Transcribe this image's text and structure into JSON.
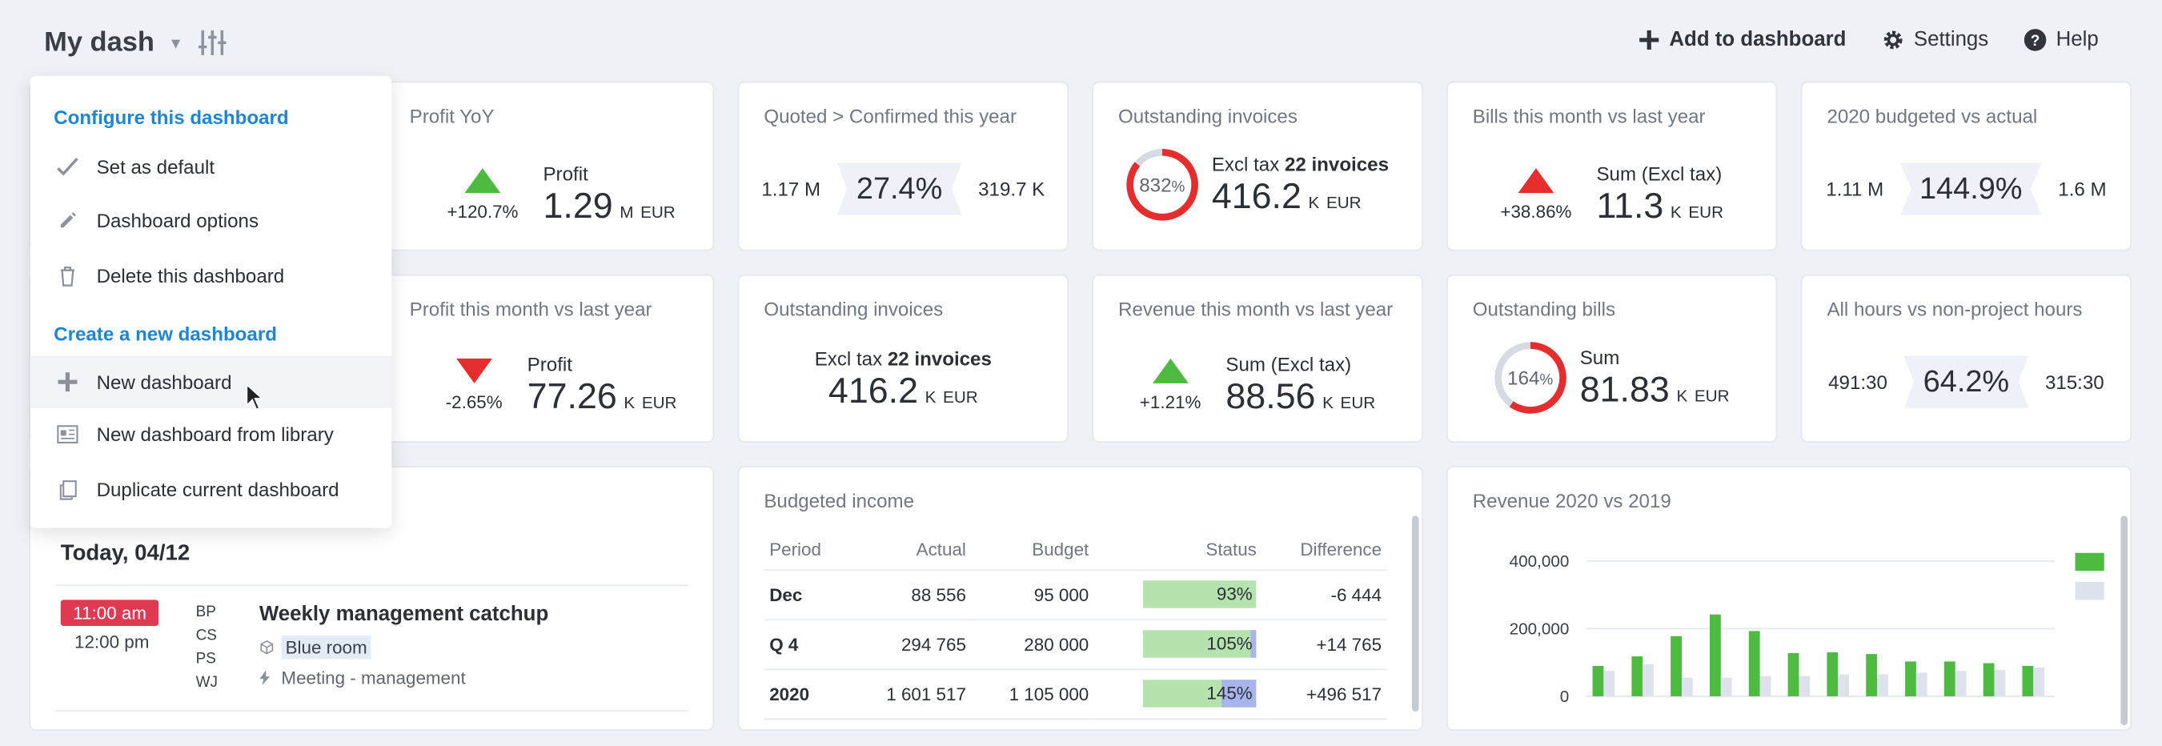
{
  "header": {
    "title": "My dash",
    "add_label": "Add to dashboard",
    "settings_label": "Settings",
    "help_label": "Help"
  },
  "menu": {
    "configure_heading": "Configure this dashboard",
    "set_default": "Set as default",
    "dashboard_options": "Dashboard options",
    "delete_dashboard": "Delete this dashboard",
    "create_heading": "Create a new dashboard",
    "new_dashboard": "New dashboard",
    "new_from_library": "New dashboard from library",
    "duplicate_dashboard": "Duplicate current dashboard"
  },
  "cards": {
    "profit_yoy": {
      "title": "Profit YoY",
      "change": "+120.7%",
      "label": "Profit",
      "value": "1.29",
      "unit": "M",
      "currency": "EUR"
    },
    "quoted": {
      "title": "Quoted > Confirmed this year",
      "left": "1.17 M",
      "pct": "27.4%",
      "right": "319.7 K"
    },
    "out_inv_1": {
      "title": "Outstanding invoices",
      "donut_num": "832",
      "donut_pct": "%",
      "label_pre": "Excl tax",
      "label_bold": "22 invoices",
      "value": "416.2",
      "unit": "K",
      "currency": "EUR"
    },
    "bills": {
      "title": "Bills this month vs last year",
      "change": "+38.86%",
      "label": "Sum (Excl tax)",
      "value": "11.3",
      "unit": "K",
      "currency": "EUR"
    },
    "budgeted": {
      "title": "2020 budgeted vs actual",
      "left": "1.11 M",
      "pct": "144.9%",
      "right": "1.6 M"
    },
    "profit_month": {
      "title": "Profit this month vs last year",
      "change": "-2.65%",
      "label": "Profit",
      "value": "77.26",
      "unit": "K",
      "currency": "EUR"
    },
    "out_inv_2": {
      "title": "Outstanding invoices",
      "label_pre": "Excl tax",
      "label_bold": "22 invoices",
      "value": "416.2",
      "unit": "K",
      "currency": "EUR"
    },
    "revenue_month": {
      "title": "Revenue this month vs last year",
      "change": "+1.21%",
      "label": "Sum (Excl tax)",
      "value": "88.56",
      "unit": "K",
      "currency": "EUR"
    },
    "out_bills": {
      "title": "Outstanding bills",
      "donut_num": "164",
      "donut_pct": "%",
      "label": "Sum",
      "value": "81.83",
      "unit": "K",
      "currency": "EUR"
    },
    "hours": {
      "title": "All hours vs non-project hours",
      "left": "491:30",
      "pct": "64.2%",
      "right": "315:30"
    }
  },
  "calendar": {
    "day": "Today, 04/12",
    "start": "11:00 am",
    "end": "12:00 pm",
    "initials": [
      "BP",
      "CS",
      "PS",
      "WJ"
    ],
    "event_title": "Weekly management catchup",
    "room": "Blue room",
    "type": "Meeting - management"
  },
  "budget_table": {
    "title": "Budgeted income",
    "headers": [
      "Period",
      "Actual",
      "Budget",
      "Status",
      "Difference"
    ],
    "rows": [
      {
        "period": "Dec",
        "actual": "88 556",
        "budget": "95 000",
        "status": "93%",
        "status_value": 93,
        "diff": "-6 444",
        "diff_sign": "neg"
      },
      {
        "period": "Q 4",
        "actual": "294 765",
        "budget": "280 000",
        "status": "105%",
        "status_value": 105,
        "diff": "+14 765",
        "diff_sign": "pos"
      },
      {
        "period": "2020",
        "actual": "1 601 517",
        "budget": "1 105 000",
        "status": "145%",
        "status_value": 145,
        "diff": "+496 517",
        "diff_sign": "pos"
      }
    ]
  },
  "chart_data": {
    "type": "bar",
    "title": "Revenue 2020 vs 2019",
    "ylim": [
      0,
      420000
    ],
    "yticks": [
      0,
      200000,
      400000
    ],
    "ytick_labels": [
      "0",
      "200,000",
      "400,000"
    ],
    "grid": true,
    "legend_position": "right",
    "colors": {
      "s2020": "#4cbb3f",
      "s2019": "#dde2ec"
    },
    "series": [
      {
        "values": [
          90000,
          118000,
          178000,
          242000,
          193000,
          128000,
          130000,
          125000,
          103000,
          103000,
          98000,
          90000
        ]
      },
      {
        "values": [
          75000,
          95000,
          55000,
          55000,
          60000,
          60000,
          65000,
          65000,
          70000,
          75000,
          78000,
          85000
        ]
      }
    ]
  }
}
